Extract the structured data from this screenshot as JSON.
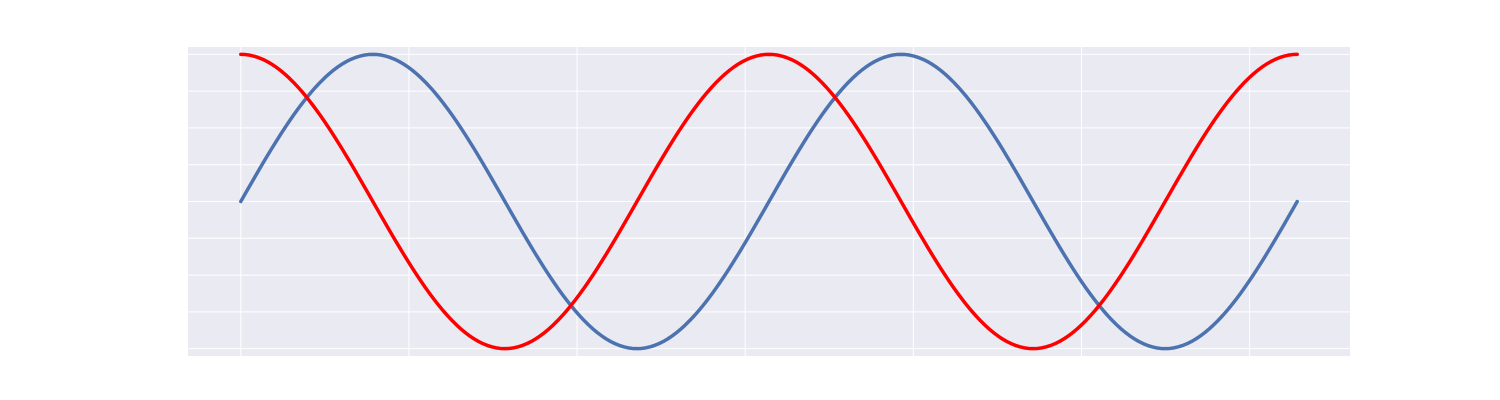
{
  "chart_data": {
    "type": "line",
    "title": "",
    "xlabel": "",
    "ylabel": "",
    "x_range": [
      0,
      12.566
    ],
    "xlim": [
      -0.628,
      13.194
    ],
    "ylim": [
      -1.05,
      1.05
    ],
    "grid": true,
    "x_grid": [
      0,
      2,
      4,
      6,
      8,
      10,
      12
    ],
    "y_grid": [
      -1.0,
      -0.75,
      -0.5,
      -0.25,
      0.0,
      0.25,
      0.5,
      0.75,
      1.0
    ],
    "tick_labels_visible": false,
    "samples": 241,
    "series": [
      {
        "function": "sin(x)",
        "color": "#4c72b0"
      },
      {
        "function": "cos(x)",
        "color": "#ff0000"
      }
    ],
    "background_color": "#eaeaf2",
    "grid_color": "#ffffff"
  }
}
